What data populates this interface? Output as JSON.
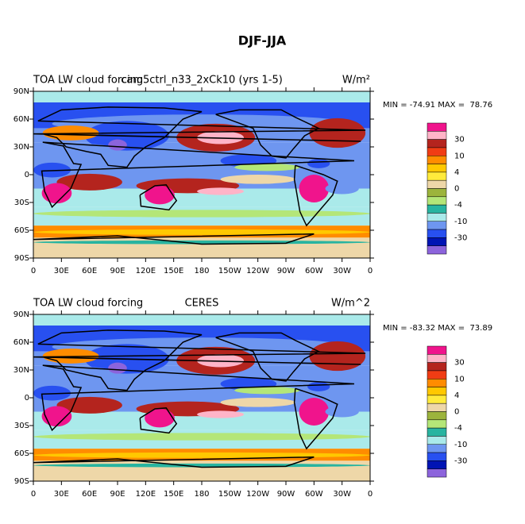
{
  "title": "DJF-JJA",
  "panels": [
    {
      "left_title": "TOA LW cloud forcing",
      "center_title": "cam5ctrl_n33_2xCk10 (yrs 1-5)",
      "units": "W/m²",
      "min_max": "MIN = -74.91 MAX =  78.76"
    },
    {
      "left_title": "TOA LW cloud forcing",
      "center_title": "CERES",
      "units": "W/m^2",
      "min_max": "MIN = -83.32 MAX =  73.89"
    }
  ],
  "lat_labels": [
    "90N",
    "60N",
    "30N",
    "0",
    "30S",
    "60S",
    "90S"
  ],
  "lon_labels": [
    "0",
    "30E",
    "60E",
    "90E",
    "120E",
    "150E",
    "180",
    "150W",
    "120W",
    "90W",
    "60W",
    "30W",
    "0"
  ],
  "colorbar": {
    "colors": [
      "#f0148c",
      "#ffb4c8",
      "#b4241e",
      "#f03c14",
      "#ff8c00",
      "#ffc800",
      "#ffeb3c",
      "#eed7a8",
      "#9cb43c",
      "#b4e678",
      "#28b4a0",
      "#aaeaea",
      "#6e96f0",
      "#2850f0",
      "#0014b4",
      "#8c64dc"
    ],
    "labels": [
      "30",
      "10",
      "4",
      "0",
      "-4",
      "-10",
      "-30"
    ]
  }
}
